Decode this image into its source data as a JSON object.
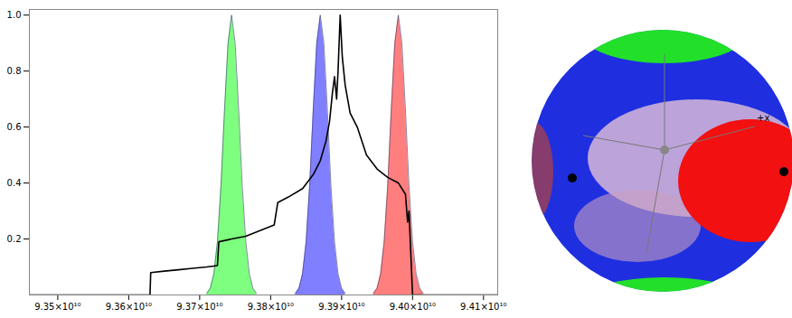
{
  "chart_data": {
    "type": "area",
    "xlim": [
      93460000000.0,
      94120000000.0
    ],
    "xticks": [
      {
        "value": 93500000000.0,
        "label": "9.35×10¹⁰"
      },
      {
        "value": 93600000000.0,
        "label": "9.36×10¹⁰"
      },
      {
        "value": 93700000000.0,
        "label": "9.37×10¹⁰"
      },
      {
        "value": 93800000000.0,
        "label": "9.38×10¹⁰"
      },
      {
        "value": 93900000000.0,
        "label": "9.39×10¹⁰"
      },
      {
        "value": 94000000000.0,
        "label": "9.40×10¹⁰"
      },
      {
        "value": 94100000000.0,
        "label": "9.41×10¹⁰"
      }
    ],
    "ylim": [
      0,
      1.02
    ],
    "yticks": [
      0.2,
      0.4,
      0.6,
      0.8,
      {
        "value": 1,
        "label": "1.0"
      }
    ],
    "grid": false,
    "series": [
      {
        "type": "area",
        "color": "#00ff00",
        "x": [
          93710000000.0,
          93715000000.0,
          93720000000.0,
          93725000000.0,
          93730000000.0,
          93735000000.0,
          93740000000.0,
          93745000000.0,
          93750000000.0,
          93755000000.0,
          93760000000.0,
          93765000000.0,
          93770000000.0,
          93775000000.0,
          93780000000.0
        ],
        "values": [
          0.006,
          0.024,
          0.076,
          0.19,
          0.39,
          0.66,
          0.9,
          1.0,
          0.9,
          0.66,
          0.39,
          0.19,
          0.076,
          0.024,
          0.006
        ]
      },
      {
        "type": "area",
        "color": "#0000ff",
        "x": [
          93835000000.0,
          93840000000.0,
          93845000000.0,
          93850000000.0,
          93855000000.0,
          93860000000.0,
          93865000000.0,
          93870000000.0,
          93875000000.0,
          93880000000.0,
          93885000000.0,
          93890000000.0,
          93895000000.0,
          93900000000.0,
          93905000000.0
        ],
        "values": [
          0.006,
          0.024,
          0.076,
          0.19,
          0.39,
          0.66,
          0.9,
          1.0,
          0.9,
          0.66,
          0.39,
          0.19,
          0.076,
          0.024,
          0.006
        ]
      },
      {
        "type": "area",
        "color": "#ff0000",
        "x": [
          93945000000.0,
          93950000000.0,
          93955000000.0,
          93960000000.0,
          93965000000.0,
          93970000000.0,
          93975000000.0,
          93980000000.0,
          93985000000.0,
          93990000000.0,
          93995000000.0,
          94000000000.0,
          94005000000.0,
          94010000000.0,
          94015000000.0
        ],
        "values": [
          0.006,
          0.024,
          0.076,
          0.19,
          0.39,
          0.66,
          0.9,
          1.0,
          0.9,
          0.66,
          0.39,
          0.19,
          0.076,
          0.024,
          0.006
        ]
      },
      {
        "type": "line",
        "color": "#000000",
        "x": [
          93460000000.0,
          93630000000.0,
          93631000000.0,
          93650000000.0,
          93670000000.0,
          93690000000.0,
          93710000000.0,
          93725000000.0,
          93727000000.0,
          93745000000.0,
          93765000000.0,
          93785000000.0,
          93805000000.0,
          93810000000.0,
          93825000000.0,
          93845000000.0,
          93860000000.0,
          93870000000.0,
          93878000000.0,
          93883000000.0,
          93887000000.0,
          93890000000.0,
          93893000000.0,
          93895000000.0,
          93898000000.0,
          93901000000.0,
          93905000000.0,
          93912000000.0,
          93922000000.0,
          93935000000.0,
          93950000000.0,
          93965000000.0,
          93980000000.0,
          93990000000.0,
          93993000000.0,
          93995000000.0,
          94000000000.0,
          94120000000.0
        ],
        "values": [
          0,
          0,
          0.08,
          0.085,
          0.09,
          0.095,
          0.1,
          0.105,
          0.19,
          0.2,
          0.21,
          0.23,
          0.25,
          0.33,
          0.35,
          0.38,
          0.43,
          0.48,
          0.55,
          0.62,
          0.72,
          0.78,
          0.7,
          0.8,
          1.0,
          0.85,
          0.75,
          0.65,
          0.6,
          0.5,
          0.45,
          0.42,
          0.4,
          0.36,
          0.26,
          0.3,
          0,
          0
        ]
      }
    ]
  },
  "sphere": {
    "labels": [
      "+x"
    ]
  }
}
